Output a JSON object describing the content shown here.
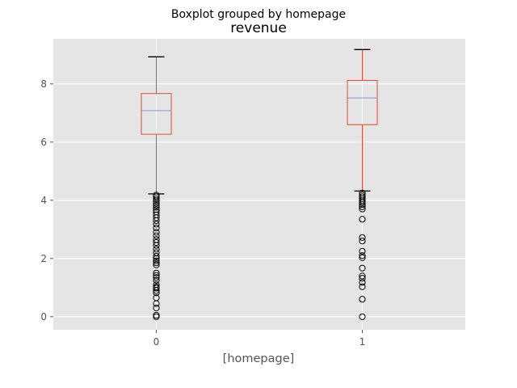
{
  "chart_data": {
    "type": "boxplot",
    "suptitle": "Boxplot grouped by homepage",
    "title": "revenue",
    "xlabel": "[homepage]",
    "ylabel": "",
    "categories": [
      "0",
      "1"
    ],
    "ylim": [
      -0.45,
      9.55
    ],
    "yticks": [
      0,
      2,
      4,
      6,
      8
    ],
    "grid": true,
    "style": "ggplot",
    "colors": {
      "plot_background": "#E5E5E5",
      "grid": "#FFFFFF",
      "box": "#E24A33",
      "median": "#8C8CE0",
      "cap": "#000000",
      "flier": "#000000",
      "tick_text": "#555555"
    },
    "boxes": [
      {
        "category": "0",
        "whisker_low": 4.22,
        "q1": 6.27,
        "median": 7.08,
        "q3": 7.67,
        "whisker_high": 8.93,
        "fliers": [
          4.18,
          4.12,
          4.05,
          3.98,
          3.9,
          3.83,
          3.76,
          3.68,
          3.6,
          3.5,
          3.4,
          3.3,
          3.18,
          3.05,
          2.9,
          2.78,
          2.65,
          2.55,
          2.45,
          2.32,
          2.2,
          2.08,
          2.0,
          1.92,
          1.85,
          1.78,
          1.5,
          1.42,
          1.35,
          1.25,
          1.1,
          1.02,
          0.98,
          0.9,
          0.82,
          0.65,
          0.45,
          0.3,
          0.05,
          0.0
        ]
      },
      {
        "category": "1",
        "whisker_low": 4.32,
        "q1": 6.6,
        "median": 7.52,
        "q3": 8.12,
        "whisker_high": 9.18,
        "fliers": [
          4.25,
          4.18,
          4.12,
          4.05,
          3.98,
          3.92,
          3.85,
          3.78,
          3.7,
          3.35,
          2.72,
          2.6,
          2.25,
          2.1,
          2.03,
          1.67,
          1.4,
          1.32,
          1.18,
          1.03,
          0.6,
          0.0
        ]
      }
    ]
  }
}
